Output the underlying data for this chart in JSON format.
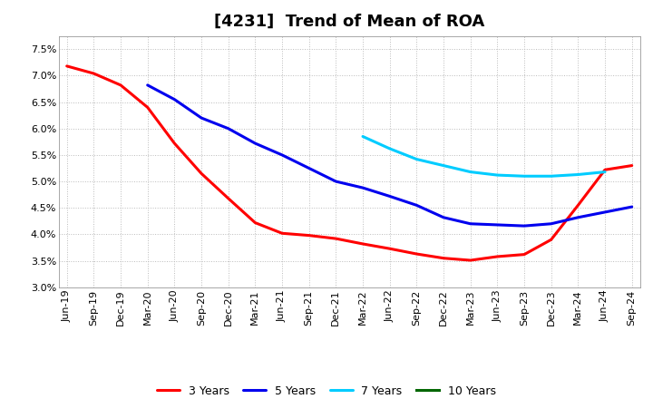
{
  "title": "[4231]  Trend of Mean of ROA",
  "x_labels": [
    "Jun-19",
    "Sep-19",
    "Dec-19",
    "Mar-20",
    "Jun-20",
    "Sep-20",
    "Dec-20",
    "Mar-21",
    "Jun-21",
    "Sep-21",
    "Dec-21",
    "Mar-22",
    "Jun-22",
    "Sep-22",
    "Dec-22",
    "Mar-23",
    "Jun-23",
    "Sep-23",
    "Dec-23",
    "Mar-24",
    "Jun-24",
    "Sep-24"
  ],
  "series": {
    "3 Years": {
      "color": "#FF0000",
      "data_x": [
        0,
        1,
        2,
        3,
        4,
        5,
        6,
        7,
        8,
        9,
        10,
        11,
        12,
        13,
        14,
        15,
        16,
        17,
        18,
        19,
        20,
        21
      ],
      "data_y": [
        7.18,
        7.04,
        6.82,
        6.4,
        5.72,
        5.15,
        4.68,
        4.22,
        4.02,
        3.98,
        3.92,
        3.82,
        3.73,
        3.63,
        3.55,
        3.51,
        3.58,
        3.62,
        3.9,
        4.55,
        5.22,
        5.3
      ]
    },
    "5 Years": {
      "color": "#0000EE",
      "data_x": [
        3,
        4,
        5,
        6,
        7,
        8,
        9,
        10,
        11,
        12,
        13,
        14,
        15,
        16,
        17,
        18,
        19,
        20,
        21
      ],
      "data_y": [
        6.82,
        6.55,
        6.2,
        6.0,
        5.72,
        5.5,
        5.25,
        5.0,
        4.88,
        4.72,
        4.55,
        4.32,
        4.2,
        4.18,
        4.16,
        4.2,
        4.32,
        4.42,
        4.52
      ]
    },
    "7 Years": {
      "color": "#00CCFF",
      "data_x": [
        11,
        12,
        13,
        14,
        15,
        16,
        17,
        18,
        19,
        20
      ],
      "data_y": [
        5.85,
        5.62,
        5.42,
        5.3,
        5.18,
        5.12,
        5.1,
        5.1,
        5.13,
        5.18
      ]
    },
    "10 Years": {
      "color": "#006600",
      "data_x": [],
      "data_y": []
    }
  },
  "ylim": [
    3.0,
    7.75
  ],
  "yticks": [
    3.0,
    3.5,
    4.0,
    4.5,
    5.0,
    5.5,
    6.0,
    6.5,
    7.0,
    7.5
  ],
  "background_color": "#FFFFFF",
  "plot_bg_color": "#FFFFFF",
  "grid_color": "#BBBBBB",
  "title_fontsize": 13,
  "tick_fontsize": 8,
  "legend_fontsize": 9
}
